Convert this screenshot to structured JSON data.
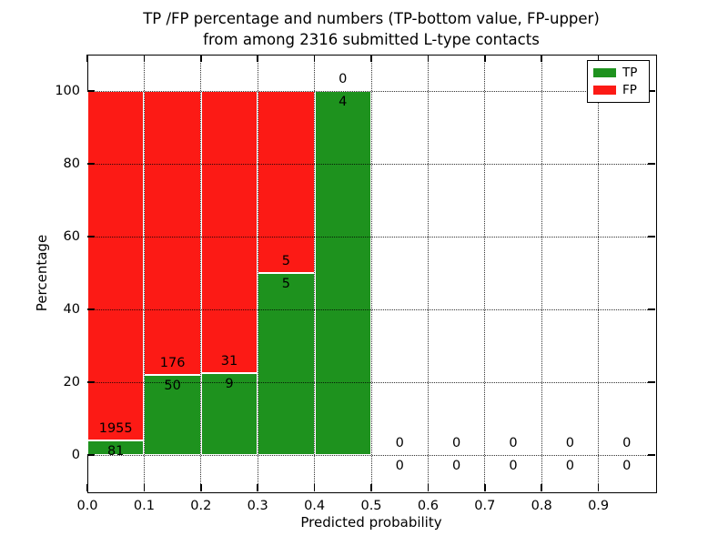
{
  "figure": {
    "title_line1": "TP /FP percentage and numbers (TP-bottom value, FP-upper)",
    "title_line2": "from among 2316 submitted L-type contacts",
    "xlabel": "Predicted probability",
    "ylabel": "Percentage"
  },
  "legend": {
    "items": [
      {
        "label": "TP",
        "color": "#1e921e"
      },
      {
        "label": "FP",
        "color": "#fc1a15"
      }
    ]
  },
  "chart_data": {
    "type": "bar",
    "stacked": true,
    "title": "TP /FP percentage and numbers (TP-bottom value, FP-upper) from among 2316 submitted L-type contacts",
    "xlabel": "Predicted probability",
    "ylabel": "Percentage",
    "total_submitted_contacts": 2316,
    "bar_unit": "percent of bin total (TP+FP), bars stacked TP bottom / FP top, counts shown as labels at the TP/FP boundary",
    "bin_width": 0.1,
    "bin_starts": [
      0.0,
      0.1,
      0.2,
      0.3,
      0.4,
      0.5,
      0.6,
      0.7,
      0.8,
      0.9
    ],
    "series": [
      {
        "name": "TP",
        "color": "#1e921e",
        "counts": [
          81,
          50,
          9,
          5,
          4,
          0,
          0,
          0,
          0,
          0
        ]
      },
      {
        "name": "FP",
        "color": "#fc1a15",
        "counts": [
          1955,
          176,
          31,
          5,
          0,
          0,
          0,
          0,
          0,
          0
        ]
      }
    ],
    "tp_percent_of_bin": [
      3.98,
      22.12,
      22.5,
      50.0,
      100.0,
      0,
      0,
      0,
      0,
      0
    ],
    "fp_percent_of_bin": [
      96.02,
      77.88,
      77.5,
      50.0,
      0.0,
      0,
      0,
      0,
      0,
      0
    ],
    "xlim": [
      0.0,
      1.0
    ],
    "ylim": [
      -10,
      110
    ],
    "x_ticks": [
      0.0,
      0.1,
      0.2,
      0.3,
      0.4,
      0.5,
      0.6,
      0.7,
      0.8,
      0.9
    ],
    "x_tick_labels": [
      "0.0",
      "0.1",
      "0.2",
      "0.3",
      "0.4",
      "0.5",
      "0.6",
      "0.7",
      "0.8",
      "0.9"
    ],
    "y_ticks": [
      0,
      20,
      40,
      60,
      80,
      100
    ],
    "grid": true,
    "grid_style": "dotted",
    "tick_direction": "in, all four spines",
    "legend_position": "upper right"
  }
}
